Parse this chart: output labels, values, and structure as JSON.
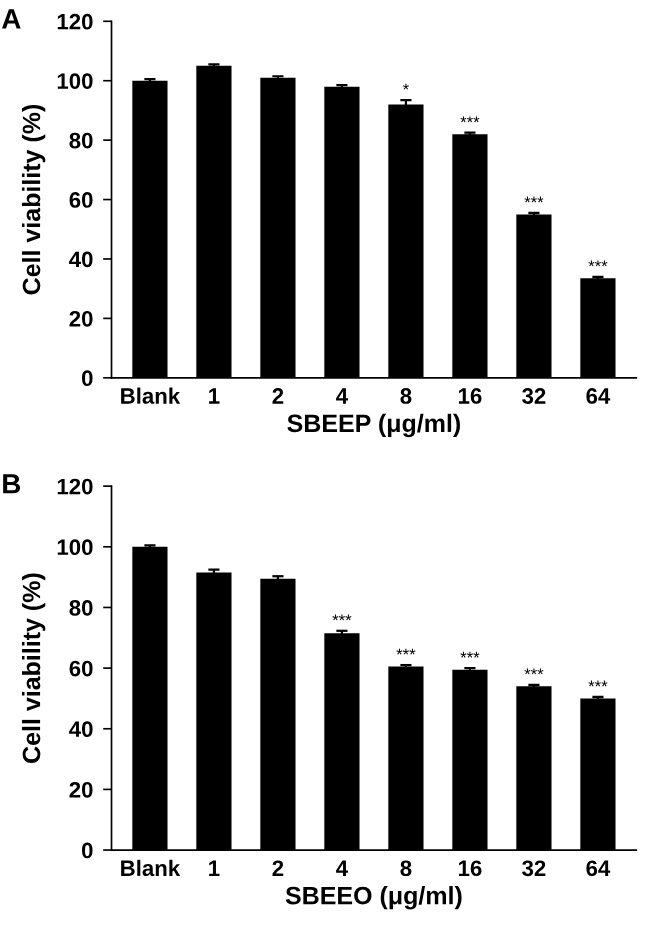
{
  "chart_data": [
    {
      "type": "bar",
      "title": "A",
      "xlabel": "SBEEP (μg/ml)",
      "ylabel": "Cell viability (%)",
      "categories": [
        "Blank",
        "1",
        "2",
        "4",
        "8",
        "16",
        "32",
        "64"
      ],
      "values": [
        100,
        105,
        101,
        98,
        92,
        82,
        55,
        33.5
      ],
      "errors": [
        0.5,
        0.5,
        0.5,
        0.5,
        1.5,
        0.5,
        0.5,
        0.5
      ],
      "color": "#000000",
      "ylim": [
        0,
        120
      ],
      "yticks": [
        0,
        20,
        40,
        60,
        80,
        100,
        120
      ],
      "grid": false,
      "legend": false,
      "annotations": [
        {
          "text": "*",
          "x": "8",
          "y": 92
        },
        {
          "text": "***",
          "x": "16",
          "y": 82
        },
        {
          "text": "***",
          "x": "32",
          "y": 55
        },
        {
          "text": "***",
          "x": "64",
          "y": 33.5
        }
      ]
    },
    {
      "type": "bar",
      "title": "B",
      "xlabel": "SBEEO (μg/ml)",
      "ylabel": "Cell viability (%)",
      "categories": [
        "Blank",
        "1",
        "2",
        "4",
        "8",
        "16",
        "32",
        "64"
      ],
      "values": [
        100,
        91.5,
        89.5,
        71.5,
        60.5,
        59.5,
        54,
        50
      ],
      "errors": [
        0.5,
        1,
        0.8,
        0.8,
        0.5,
        0.5,
        0.5,
        0.5
      ],
      "color": "#000000",
      "ylim": [
        0,
        120
      ],
      "yticks": [
        0,
        20,
        40,
        60,
        80,
        100,
        120
      ],
      "grid": false,
      "legend": false,
      "annotations": [
        {
          "text": "***",
          "x": "4",
          "y": 71.5
        },
        {
          "text": "***",
          "x": "8",
          "y": 60.5
        },
        {
          "text": "***",
          "x": "16",
          "y": 59.5
        },
        {
          "text": "***",
          "x": "32",
          "y": 54
        },
        {
          "text": "***",
          "x": "64",
          "y": 50
        }
      ]
    }
  ]
}
